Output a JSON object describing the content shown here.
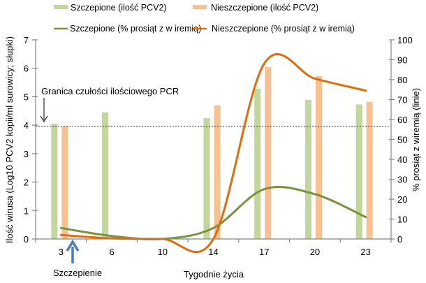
{
  "chart_data": {
    "type": "bar",
    "title": "",
    "xlabel": "Tygodnie życia",
    "ylabel": "Ilość wirusa (Log10 PCV2 kopii/ml surowicy; słupki)",
    "y2label": "% prosiąt z wiremią (linie)",
    "categories": [
      "3",
      "6",
      "10",
      "14",
      "17",
      "20",
      "23"
    ],
    "ylim": [
      0,
      7
    ],
    "yticks": [
      0,
      1,
      2,
      3,
      4,
      5,
      6,
      7
    ],
    "y2lim": [
      0,
      100
    ],
    "y2ticks": [
      0,
      10,
      20,
      30,
      40,
      50,
      60,
      70,
      80,
      90,
      100
    ],
    "grid": false,
    "legend_position": "top",
    "bar_series": [
      {
        "name": "Szczepione (ilość PCV2)",
        "color": "#c3d69b",
        "axis": "left",
        "values": [
          4.05,
          4.45,
          null,
          4.25,
          5.28,
          4.89,
          4.73
        ]
      },
      {
        "name": "Nieszczepione (ilość PCV2)",
        "color": "#fac090",
        "axis": "left",
        "values": [
          3.96,
          null,
          null,
          4.7,
          6.04,
          5.72,
          4.82
        ]
      }
    ],
    "line_series": [
      {
        "name": "Szczepione (% prosiąt z w iremią)",
        "color": "#77933c",
        "axis": "right",
        "values": [
          5.5,
          1.5,
          0,
          5.5,
          25,
          22.5,
          11
        ]
      },
      {
        "name": "Nieszczepione (% prosiąt z w iremią)",
        "color": "#e36c09",
        "axis": "right",
        "values": [
          2,
          0.3,
          0,
          0,
          88,
          80.5,
          74.5
        ]
      }
    ],
    "annotations": [
      {
        "text": "Granica czułości ilościowego PCR",
        "y_value": 3.96,
        "type": "dotted-threshold-line"
      },
      {
        "text": "Szczepienie",
        "x_category": "3",
        "type": "up-arrow"
      }
    ]
  }
}
